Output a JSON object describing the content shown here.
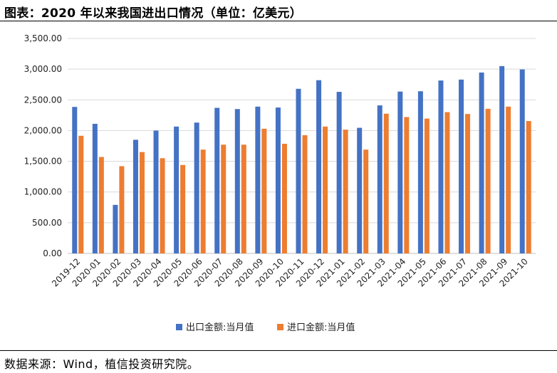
{
  "header": {
    "title": "图表：2020 年以来我国进出口情况（单位：亿美元）"
  },
  "footer": {
    "source": "数据来源：Wind，植信投资研究院。"
  },
  "chart_data": {
    "type": "bar",
    "categories": [
      "2019-12",
      "2020-01",
      "2020-02",
      "2020-03",
      "2020-04",
      "2020-05",
      "2020-06",
      "2020-07",
      "2020-08",
      "2020-09",
      "2020-10",
      "2020-11",
      "2020-12",
      "2021-01",
      "2021-02",
      "2021-03",
      "2021-04",
      "2021-05",
      "2021-06",
      "2021-07",
      "2021-08",
      "2021-09",
      "2021-10"
    ],
    "series": [
      {
        "name": "出口金额:当月值",
        "color": "#4472C4",
        "values": [
          2385,
          2110,
          790,
          1850,
          2000,
          2065,
          2130,
          2370,
          2350,
          2390,
          2375,
          2680,
          2820,
          2630,
          2045,
          2410,
          2635,
          2640,
          2815,
          2830,
          2945,
          3050,
          2995
        ]
      },
      {
        "name": "进口金额:当月值",
        "color": "#ED7D31",
        "values": [
          1915,
          1570,
          1420,
          1650,
          1550,
          1440,
          1690,
          1770,
          1770,
          2030,
          1785,
          1925,
          2065,
          2015,
          1690,
          2275,
          2220,
          2195,
          2300,
          2270,
          2355,
          2390,
          2155
        ]
      }
    ],
    "yticks": [
      "0.00",
      "500.00",
      "1,000.00",
      "1,500.00",
      "2,000.00",
      "2,500.00",
      "3,000.00",
      "3,500.00"
    ],
    "ylim": [
      0,
      3500
    ],
    "grid": true,
    "legend": "bottom"
  }
}
